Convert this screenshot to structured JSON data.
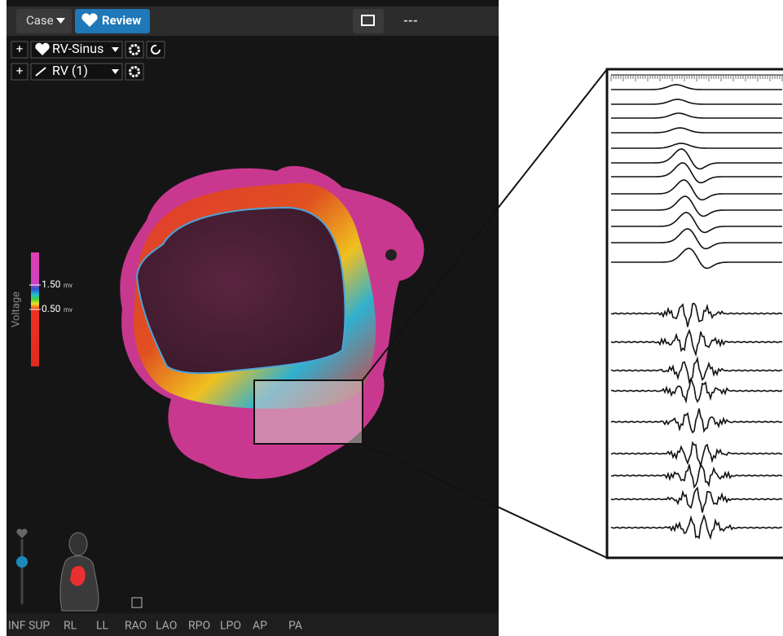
{
  "toolbar": {
    "case_button": "Case",
    "review_button": "Review",
    "status": "---"
  },
  "map_rows": [
    {
      "label": "RV-Sinus"
    },
    {
      "label": "RV (1)"
    }
  ],
  "voltage_scale": {
    "title": "Voltage",
    "high": "1.50",
    "low": "0.50",
    "unit": "mv"
  },
  "views": [
    "INF",
    "SUP",
    "RL",
    "LL",
    "RAO",
    "LAO",
    "RPO",
    "LPO",
    "AP",
    "PA"
  ]
}
